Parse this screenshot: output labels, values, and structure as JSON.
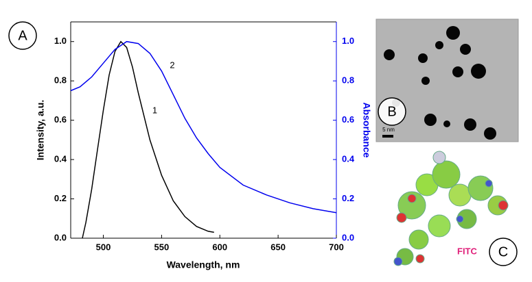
{
  "chart_data": {
    "type": "line",
    "x_label": "Wavelength, nm",
    "y_label": "Intensity, a.u.",
    "y2_label": "Absorbance",
    "xlim": [
      472,
      700
    ],
    "xticks": [
      500,
      550,
      600,
      650,
      700
    ],
    "ylim": [
      0,
      1.1
    ],
    "yticks": [
      {
        "value": 0,
        "label": "0.0"
      },
      0.2,
      0.4,
      0.6,
      0.8,
      {
        "value": 1,
        "label": "1.0"
      }
    ],
    "y2lim": [
      0,
      1.1
    ],
    "y2ticks": [
      {
        "value": 0,
        "label": "0.0"
      },
      0.2,
      0.4,
      0.6,
      0.8,
      {
        "value": 1,
        "label": "1.0"
      }
    ],
    "y2_color": "#0000ee",
    "series": [
      {
        "name": "1",
        "color": "#000000",
        "x": [
          482,
          485,
          490,
          495,
          500,
          505,
          510,
          515,
          520,
          525,
          530,
          535,
          540,
          550,
          560,
          570,
          580,
          590,
          595
        ],
        "values": [
          0.0,
          0.08,
          0.25,
          0.45,
          0.65,
          0.83,
          0.95,
          1.0,
          0.97,
          0.87,
          0.74,
          0.62,
          0.5,
          0.32,
          0.19,
          0.11,
          0.06,
          0.035,
          0.03
        ]
      },
      {
        "name": "2",
        "color": "#0000ee",
        "axis": "y2",
        "x": [
          472,
          480,
          490,
          500,
          510,
          520,
          530,
          540,
          550,
          560,
          570,
          580,
          590,
          600,
          620,
          640,
          660,
          680,
          700
        ],
        "values": [
          0.75,
          0.77,
          0.82,
          0.89,
          0.96,
          1.0,
          0.99,
          0.94,
          0.85,
          0.73,
          0.61,
          0.51,
          0.43,
          0.36,
          0.27,
          0.22,
          0.18,
          0.15,
          0.13
        ]
      }
    ]
  },
  "figure": {
    "panel_a": "A",
    "panel_b": "B",
    "panel_c": "C",
    "molecule_label": "FITC",
    "scale_bar_label": "5 nm"
  }
}
